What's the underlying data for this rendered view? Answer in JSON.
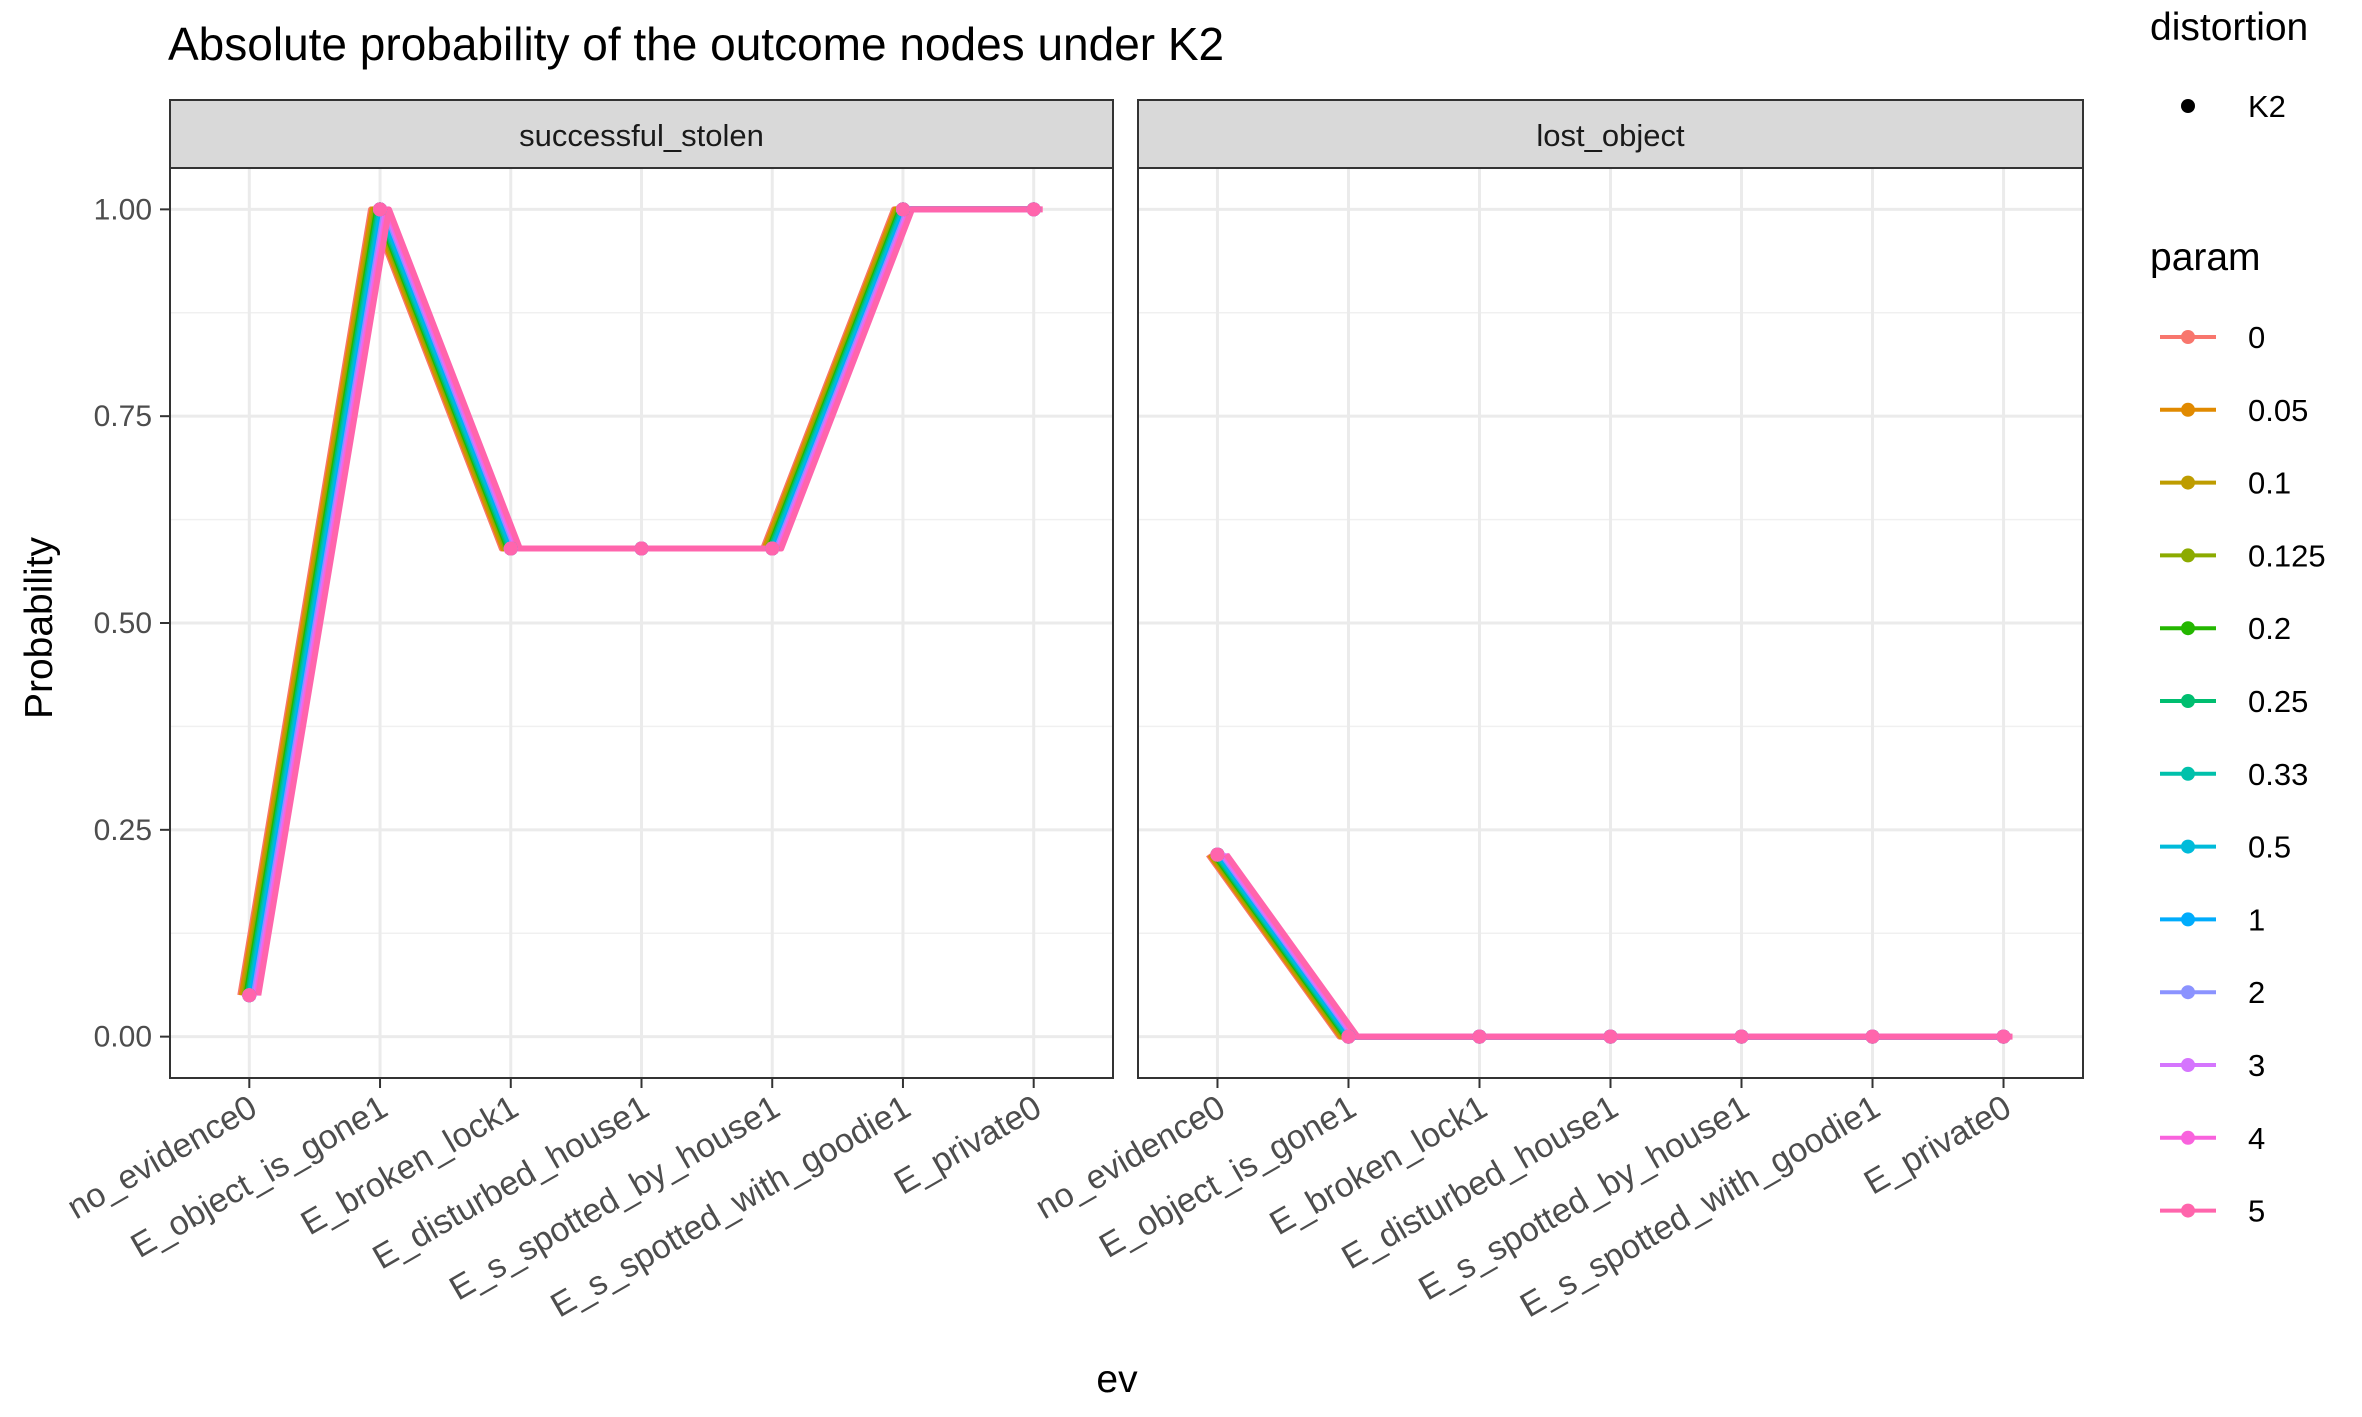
{
  "chart_data": {
    "type": "line",
    "title": "Absolute probability of the outcome nodes under K2",
    "xlabel": "ev",
    "ylabel": "Probability",
    "ylim": [
      -0.05,
      1.05
    ],
    "yticks": [
      0.0,
      0.25,
      0.5,
      0.75,
      1.0
    ],
    "ytick_labels": [
      "0.00",
      "0.25",
      "0.50",
      "0.75",
      "1.00"
    ],
    "grid": true,
    "categories": [
      "no_evidence0",
      "E_object_is_gone1",
      "E_broken_lock1",
      "E_disturbed_house1",
      "E_s_spotted_by_house1",
      "E_s_spotted_with_goodie1",
      "E_private0"
    ],
    "panels": [
      {
        "name": "successful_stolen",
        "values": [
          0.05,
          1.0,
          0.59,
          0.59,
          0.59,
          1.0,
          1.0
        ]
      },
      {
        "name": "lost_object",
        "values": [
          0.22,
          0.0,
          0.0,
          0.0,
          0.0,
          0.0,
          0.0
        ]
      }
    ],
    "legend_distortion": {
      "title": "distortion",
      "entries": [
        {
          "label": "K2"
        }
      ]
    },
    "legend_param": {
      "title": "param",
      "placement": "right",
      "entries": [
        {
          "label": "0",
          "color": "#F8766D"
        },
        {
          "label": "0.05",
          "color": "#E18A00"
        },
        {
          "label": "0.1",
          "color": "#BE9C00"
        },
        {
          "label": "0.125",
          "color": "#8CAB00"
        },
        {
          "label": "0.2",
          "color": "#24B700"
        },
        {
          "label": "0.25",
          "color": "#00BE70"
        },
        {
          "label": "0.33",
          "color": "#00C1AB"
        },
        {
          "label": "0.5",
          "color": "#00BBDA"
        },
        {
          "label": "1",
          "color": "#00ACFC"
        },
        {
          "label": "2",
          "color": "#8B93FF"
        },
        {
          "label": "3",
          "color": "#D575FE"
        },
        {
          "label": "4",
          "color": "#F962DD"
        },
        {
          "label": "5",
          "color": "#FF65AC"
        }
      ]
    }
  }
}
